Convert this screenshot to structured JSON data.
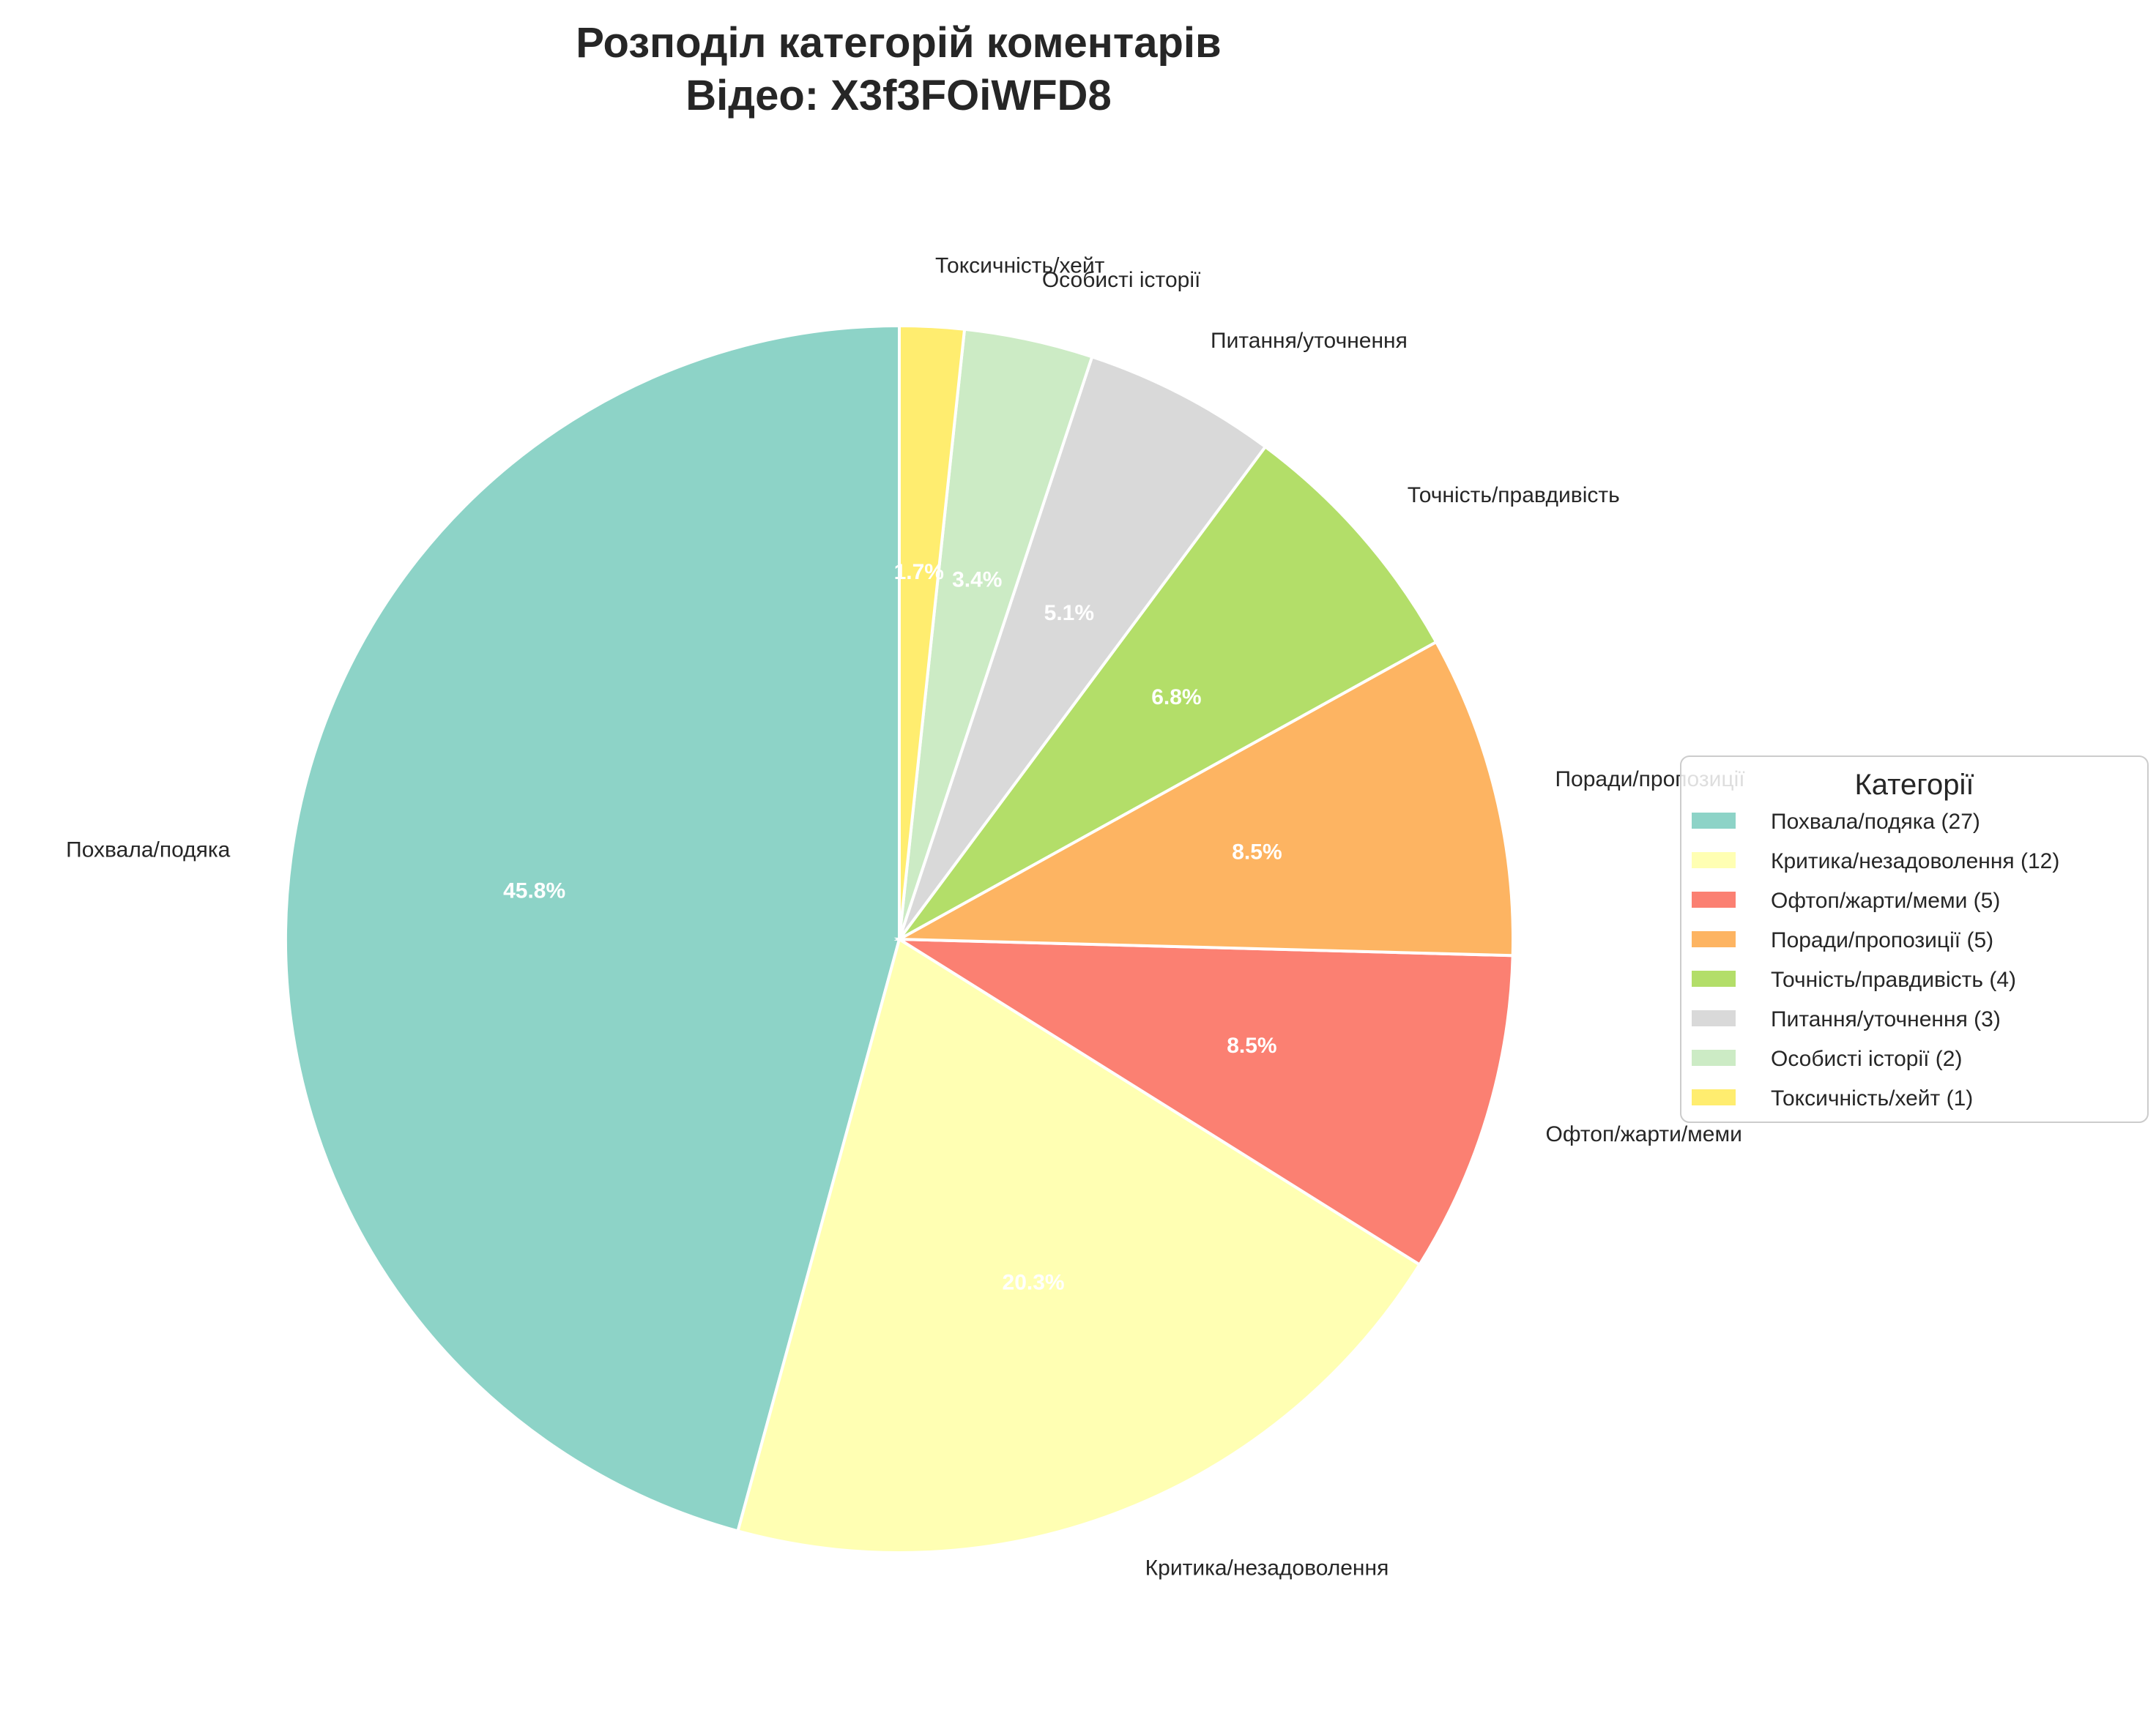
{
  "chart_data": {
    "type": "pie",
    "title": "Розподіл категорій коментарів",
    "subtitle": "Відео: X3f3FOiWFD8",
    "start_angle_deg": 90,
    "direction": "counterclockwise",
    "slices": [
      {
        "label": "Похвала/подяка",
        "value": 27,
        "pct_label": "45.8%",
        "legend_label": "Похвала/подяка (27)",
        "color": "#8dd3c7"
      },
      {
        "label": "Критика/незадоволення",
        "value": 12,
        "pct_label": "20.3%",
        "legend_label": "Критика/незадоволення (12)",
        "color": "#ffffb3"
      },
      {
        "label": "Офтоп/жарти/меми",
        "value": 5,
        "pct_label": "8.5%",
        "legend_label": "Офтоп/жарти/меми (5)",
        "color": "#fb8072"
      },
      {
        "label": "Поради/пропозиції",
        "value": 5,
        "pct_label": "8.5%",
        "legend_label": "Поради/пропозиції (5)",
        "color": "#fdb462"
      },
      {
        "label": "Точність/правдивість",
        "value": 4,
        "pct_label": "6.8%",
        "legend_label": "Точність/правдивість (4)",
        "color": "#b3de69"
      },
      {
        "label": "Питання/уточнення",
        "value": 3,
        "pct_label": "5.1%",
        "legend_label": "Питання/уточнення (3)",
        "color": "#d9d9d9"
      },
      {
        "label": "Особисті історії",
        "value": 2,
        "pct_label": "3.4%",
        "legend_label": "Особисті історії (2)",
        "color": "#ccebc5"
      },
      {
        "label": "Токсичність/хейт",
        "value": 1,
        "pct_label": "1.7%",
        "legend_label": "Токсичність/хейт (1)",
        "color": "#ffed6f"
      }
    ],
    "legend": {
      "title": "Категорії",
      "placement": "right"
    }
  }
}
